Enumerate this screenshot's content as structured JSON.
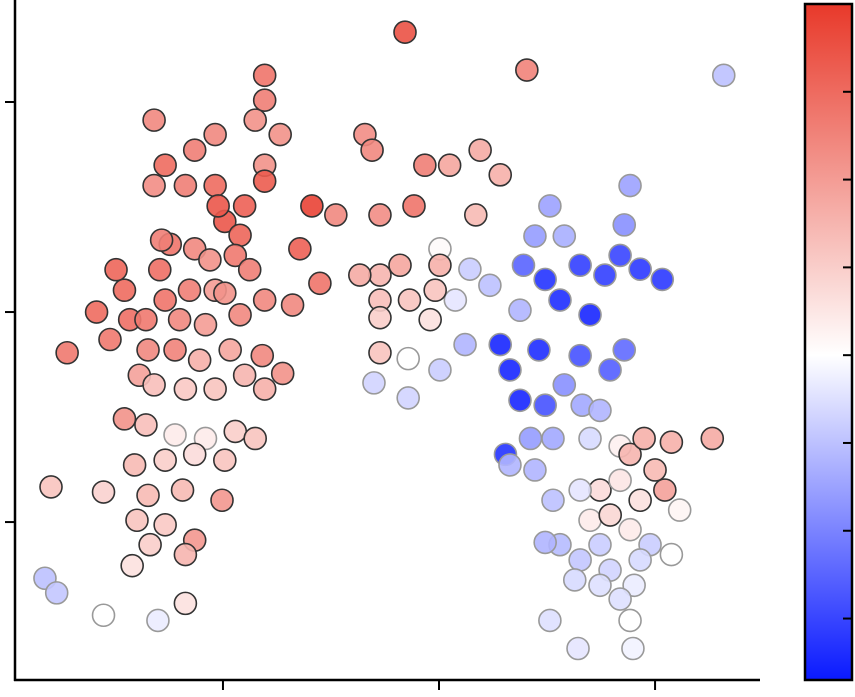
{
  "chart_data": {
    "type": "scatter",
    "xscale": "log",
    "yscale": "log",
    "xlim": [
      0.109,
      306
    ],
    "ylim": [
      0.177,
      306
    ],
    "xticks": [
      1,
      10,
      100
    ],
    "yticks": [
      1,
      10,
      100
    ],
    "clim": [
      -3.7,
      4
    ],
    "cticks": [
      -3,
      -2,
      -1,
      0,
      1,
      2,
      3
    ],
    "cmap": [
      "#0a1aff",
      "#ffffff",
      "#e8392a"
    ],
    "x": [
      6.96,
      25.5,
      208,
      1.56,
      1.56,
      0.48,
      0.92,
      1.41,
      1.84,
      4.54,
      4.9,
      0.74,
      0.54,
      1.56,
      8.6,
      11.2,
      15.5,
      19.2,
      0.48,
      0.67,
      0.92,
      1.56,
      2.58,
      3.33,
      1.26,
      1.02,
      5.33,
      7.66,
      14.8,
      32.6,
      76.6,
      72,
      27.8,
      38,
      10.1,
      68.9,
      85.3,
      108,
      24.6,
      45,
      58.6,
      31,
      36.3,
      50,
      23.7,
      17.2,
      13.9,
      11.9,
      9.1,
      7.3,
      5.33,
      4.3,
      6.6,
      10.1,
      9.6,
      5.33,
      5.33,
      5.33,
      7.2,
      5.0,
      7.2,
      10.1,
      13.2,
      19.2,
      21.3,
      23.7,
      31,
      29,
      45,
      61.9,
      72,
      38,
      46,
      55.6,
      26.5,
      33.7,
      20.3,
      21.3,
      27.8,
      50,
      68.9,
      76.6,
      89,
      119,
      184,
      100,
      111,
      55.6,
      68.9,
      85.3,
      130,
      45,
      33.7,
      50,
      62,
      76.6,
      36.3,
      31,
      55.6,
      94.8,
      119,
      45,
      61.9,
      85.3,
      42.5,
      55.6,
      80,
      68.9,
      32.6,
      76.6,
      44,
      79,
      0.32,
      0.26,
      0.19,
      0.3,
      0.37,
      0.51,
      0.57,
      0.74,
      0.87,
      1.2,
      1.14,
      1.33,
      2.27,
      2.81,
      2.1,
      1.56,
      1.2,
      0.92,
      0.7,
      0.54,
      0.44,
      0.63,
      0.83,
      0.6,
      0.45,
      0.41,
      0.78,
      1.08,
      1.52,
      1.89,
      1.26,
      1.56,
      0.48,
      0.67,
      0.92,
      0.35,
      0.44,
      0.6,
      0.83,
      1.14,
      1.41,
      0.39,
      0.54,
      0.74,
      1.02,
      0.45,
      0.65,
      0.99,
      0.4,
      0.54,
      0.74,
      0.46,
      0.38,
      0.67,
      0.16,
      0.28,
      0.15,
      0.17,
      0.28,
      0.5,
      0.67,
      0.35,
      1.02,
      0.95,
      0.52
    ],
    "y": [
      215,
      142,
      134,
      134,
      102,
      82,
      70,
      82,
      70,
      70,
      59,
      59,
      50,
      50,
      50,
      50,
      59,
      45,
      40,
      40,
      40,
      42,
      32,
      29,
      32,
      27,
      29,
      32,
      29,
      32,
      40,
      26,
      23,
      23,
      20,
      18.6,
      16,
      14.3,
      16.7,
      16.7,
      15,
      14.3,
      11.4,
      9.7,
      10.2,
      13.4,
      16,
      11.4,
      9.2,
      11.4,
      15,
      15,
      16.7,
      16.7,
      12.7,
      11.4,
      9.4,
      6.4,
      6.0,
      4.6,
      3.9,
      5.3,
      7.0,
      7.0,
      5.3,
      3.8,
      3.6,
      6.6,
      6.2,
      5.3,
      6.6,
      4.5,
      3.6,
      3.4,
      2.5,
      2.5,
      2.1,
      1.87,
      1.77,
      2.5,
      2.3,
      2.1,
      2.5,
      2.4,
      2.5,
      1.77,
      1.42,
      1.42,
      1.58,
      1.27,
      1.14,
      1.42,
      1.27,
      1.02,
      1.08,
      0.92,
      0.78,
      0.8,
      0.78,
      0.78,
      0.7,
      0.66,
      0.59,
      0.66,
      0.53,
      0.5,
      0.5,
      0.43,
      0.34,
      0.34,
      0.25,
      0.25,
      15.9,
      10,
      6.4,
      7.4,
      9.2,
      15.9,
      21,
      20,
      17.7,
      23.2,
      18.6,
      15.9,
      20,
      13.7,
      10.8,
      11.4,
      9.7,
      12.7,
      12.7,
      11.4,
      9.2,
      9.2,
      8.7,
      6.6,
      6.6,
      5.0,
      5.9,
      6.6,
      6.2,
      5.1,
      5.0,
      4.3,
      4.5,
      4.3,
      4.3,
      3.1,
      2.9,
      2.6,
      2.5,
      2.7,
      2.5,
      1.87,
      1.97,
      2.1,
      1.97,
      1.34,
      1.42,
      1.27,
      1.02,
      0.97,
      0.82,
      0.78,
      0.62,
      0.7,
      1.47,
      1.39,
      0.54,
      0.46,
      0.36,
      0.34,
      0.41,
      12.7,
      12.3,
      32,
      22
    ],
    "c": [
      3.5,
      2.5,
      -1,
      2.8,
      2.6,
      2.4,
      2.4,
      2.2,
      2.2,
      2.3,
      2.4,
      2.6,
      3,
      2.2,
      2.6,
      1.8,
      1.7,
      1.6,
      2.3,
      2.6,
      3,
      3.3,
      3.8,
      2.4,
      3.2,
      3.4,
      2.3,
      2.8,
      1.4,
      -1.5,
      -1.5,
      -1.8,
      -1.6,
      -1.3,
      0.1,
      -3,
      -3.2,
      -3.2,
      -2.5,
      -3.1,
      -3.1,
      -3.3,
      -3.4,
      -3.5,
      -1.2,
      -1,
      -0.8,
      -0.4,
      0.6,
      1.2,
      1.5,
      1.7,
      1.8,
      1.6,
      1.2,
      1.3,
      1,
      1.2,
      0,
      -0.7,
      -0.7,
      -0.8,
      -1.2,
      -3.5,
      -3.5,
      -3.5,
      -2.8,
      -3.4,
      -2.8,
      -2.6,
      -2.4,
      -1.8,
      -1.4,
      -1.2,
      -1.6,
      -1.4,
      -3.3,
      -1.2,
      -1.2,
      -0.6,
      0.3,
      1.5,
      1.6,
      1.6,
      1.7,
      1.4,
      1.9,
      0.7,
      0.5,
      0.6,
      0.2,
      -0.4,
      -1,
      0.4,
      0.8,
      0.4,
      -1.1,
      -1.2,
      -0.8,
      -0.8,
      0,
      -0.9,
      -0.7,
      -0.6,
      -0.6,
      -0.5,
      -0.3,
      -0.5,
      -0.5,
      0,
      -0.4,
      -0.2,
      3.1,
      3,
      2.7,
      2.7,
      2.9,
      2.9,
      2.8,
      2.4,
      2.2,
      3.1,
      2.7,
      2.6,
      3.2,
      2.8,
      2.4,
      2.4,
      2.4,
      2,
      2.6,
      2.8,
      2.7,
      2.4,
      2,
      2.5,
      2.4,
      1.9,
      1.6,
      1.8,
      2.4,
      2.2,
      1.5,
      1.6,
      1.3,
      1.1,
      1.2,
      2.2,
      1.3,
      0.4,
      0.4,
      1,
      1.2,
      1.4,
      1,
      0.7,
      1.2,
      1.4,
      1.4,
      2.1,
      1.2,
      1.1,
      2.1,
      1,
      0.6,
      1.5,
      1.2,
      0.9,
      -1,
      -0.9,
      0,
      -0.3,
      0.6,
      3,
      2.2,
      3.4,
      2.6
    ]
  }
}
